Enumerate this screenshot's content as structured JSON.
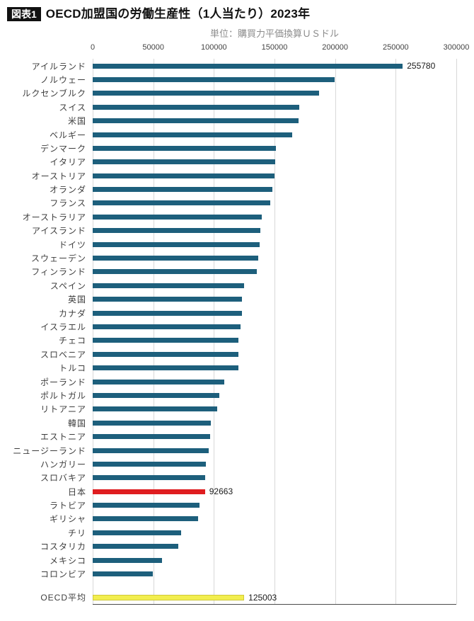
{
  "header": {
    "badge": "図表1",
    "title": "OECD加盟国の労働生産性（1人当たり）2023年",
    "unit": "単位：購買力平価換算ＵＳドル"
  },
  "chart_data": {
    "type": "bar",
    "orientation": "horizontal",
    "title": "OECD加盟国の労働生産性（1人当たり）2023年",
    "unit_label": "単位：購買力平価換算ＵＳドル",
    "xlim": [
      0,
      300000
    ],
    "x_ticks": [
      0,
      50000,
      100000,
      150000,
      200000,
      250000,
      300000
    ],
    "grid": true,
    "colors": {
      "default": "#1d5f7c",
      "japan": "#df1d20",
      "oecd": "#f2ee4e",
      "gridline": "#d8d8d8",
      "axis": "#4a4a4a"
    },
    "bars": [
      {
        "label": "アイルランド",
        "value": 255780,
        "show_value": true,
        "c": "default"
      },
      {
        "label": "ノルウェー",
        "value": 199500,
        "c": "default"
      },
      {
        "label": "ルクセンブルク",
        "value": 187000,
        "c": "default"
      },
      {
        "label": "スイス",
        "value": 170500,
        "c": "default"
      },
      {
        "label": "米国",
        "value": 170000,
        "c": "default"
      },
      {
        "label": "ベルギー",
        "value": 164500,
        "c": "default"
      },
      {
        "label": "デンマーク",
        "value": 151000,
        "c": "default"
      },
      {
        "label": "イタリア",
        "value": 150500,
        "c": "default"
      },
      {
        "label": "オーストリア",
        "value": 150000,
        "c": "default"
      },
      {
        "label": "オランダ",
        "value": 148000,
        "c": "default"
      },
      {
        "label": "フランス",
        "value": 146500,
        "c": "default"
      },
      {
        "label": "オーストラリア",
        "value": 139500,
        "c": "default"
      },
      {
        "label": "アイスランド",
        "value": 138500,
        "c": "default"
      },
      {
        "label": "ドイツ",
        "value": 138000,
        "c": "default"
      },
      {
        "label": "スウェーデン",
        "value": 136500,
        "c": "default"
      },
      {
        "label": "フィンランド",
        "value": 135500,
        "c": "default"
      },
      {
        "label": "スペイン",
        "value": 125000,
        "c": "default"
      },
      {
        "label": "英国",
        "value": 123000,
        "c": "default"
      },
      {
        "label": "カナダ",
        "value": 123000,
        "c": "default"
      },
      {
        "label": "イスラエル",
        "value": 122000,
        "c": "default"
      },
      {
        "label": "チェコ",
        "value": 120500,
        "c": "default"
      },
      {
        "label": "スロベニア",
        "value": 120000,
        "c": "default"
      },
      {
        "label": "トルコ",
        "value": 120000,
        "c": "default"
      },
      {
        "label": "ポーランド",
        "value": 108500,
        "c": "default"
      },
      {
        "label": "ポルトガル",
        "value": 104500,
        "c": "default"
      },
      {
        "label": "リトアニア",
        "value": 103000,
        "c": "default"
      },
      {
        "label": "韓国",
        "value": 97500,
        "c": "default"
      },
      {
        "label": "エストニア",
        "value": 97000,
        "c": "default"
      },
      {
        "label": "ニュージーランド",
        "value": 95500,
        "c": "default"
      },
      {
        "label": "ハンガリー",
        "value": 93500,
        "c": "default"
      },
      {
        "label": "スロバキア",
        "value": 92800,
        "c": "default"
      },
      {
        "label": "日本",
        "value": 92663,
        "show_value": true,
        "c": "japan"
      },
      {
        "label": "ラトビア",
        "value": 88000,
        "c": "default"
      },
      {
        "label": "ギリシャ",
        "value": 87000,
        "c": "default"
      },
      {
        "label": "チリ",
        "value": 73000,
        "c": "default"
      },
      {
        "label": "コスタリカ",
        "value": 70500,
        "c": "default"
      },
      {
        "label": "メキシコ",
        "value": 57000,
        "c": "default"
      },
      {
        "label": "コロンビア",
        "value": 49500,
        "c": "default"
      },
      {
        "label": "OECD平均",
        "value": 125003,
        "show_value": true,
        "c": "oecd",
        "separated": true
      }
    ]
  }
}
